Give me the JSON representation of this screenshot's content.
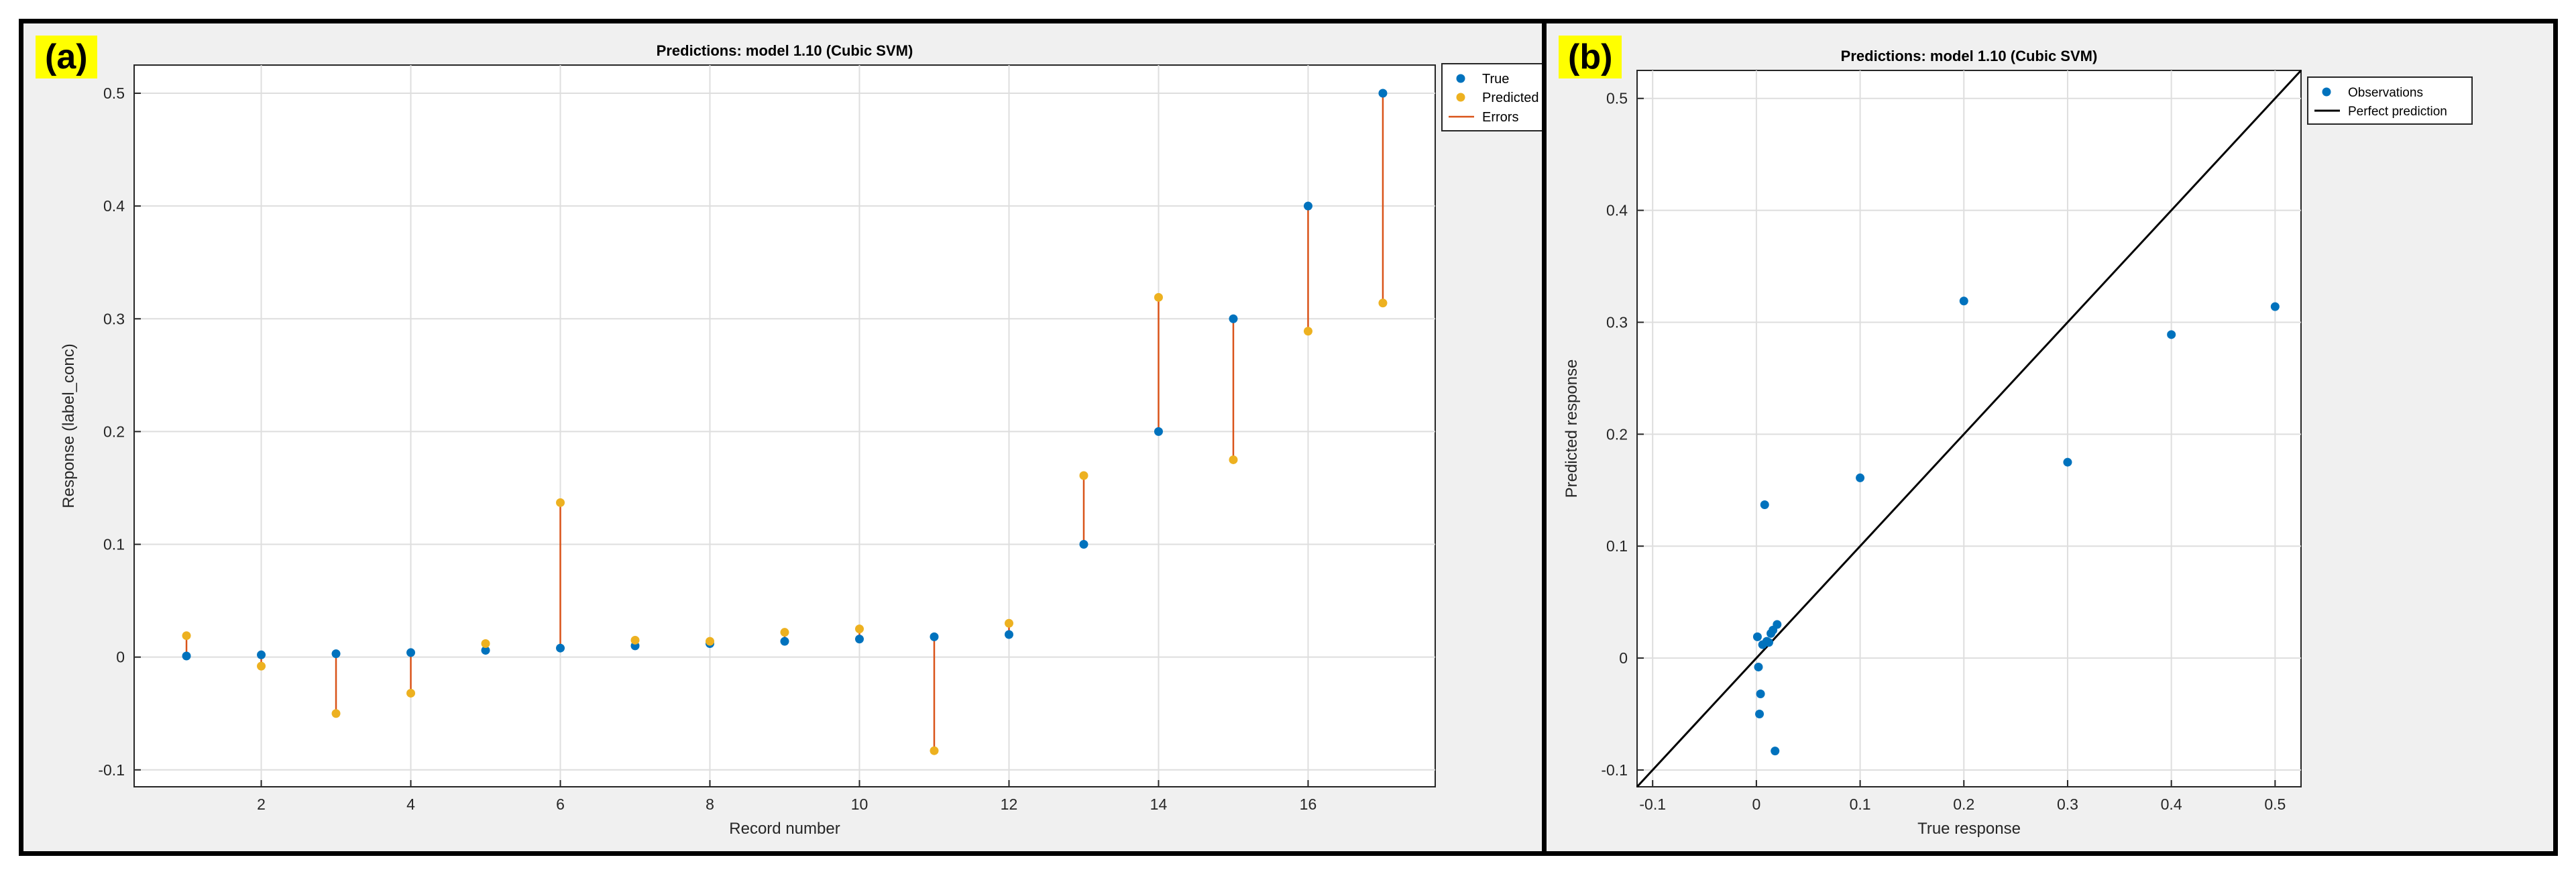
{
  "panels": [
    {
      "tag": "(a)",
      "title": "Predictions: model 1.10 (Cubic SVM)",
      "xlabel": "Record number",
      "ylabel": "Response (label_conc)",
      "legend": [
        "True",
        "Predicted",
        "Errors"
      ]
    },
    {
      "tag": "(b)",
      "title": "Predictions: model 1.10 (Cubic SVM)",
      "xlabel": "True response",
      "ylabel": "Predicted response",
      "legend": [
        "Observations",
        "Perfect prediction"
      ]
    }
  ],
  "colors": {
    "true": "#0072bd",
    "predicted": "#edb120",
    "error": "#d95319",
    "perfect": "#000000"
  },
  "chart_data": [
    {
      "type": "scatter",
      "title": "Predictions: model 1.10 (Cubic SVM)",
      "xlabel": "Record number",
      "ylabel": "Response (label_conc)",
      "xlim": [
        0.3,
        17.7
      ],
      "ylim": [
        -0.115,
        0.525
      ],
      "xticks": [
        2,
        4,
        6,
        8,
        10,
        12,
        14,
        16
      ],
      "yticks": [
        -0.1,
        0,
        0.1,
        0.2,
        0.3,
        0.4,
        0.5
      ],
      "grid": true,
      "legend_position": "top-right",
      "x": [
        1,
        2,
        3,
        4,
        5,
        6,
        7,
        8,
        9,
        10,
        11,
        12,
        13,
        14,
        15,
        16,
        17
      ],
      "series": [
        {
          "name": "True",
          "values": [
            0.001,
            0.002,
            0.003,
            0.004,
            0.006,
            0.008,
            0.01,
            0.012,
            0.014,
            0.016,
            0.018,
            0.02,
            0.1,
            0.2,
            0.3,
            0.4,
            0.5
          ]
        },
        {
          "name": "Predicted",
          "values": [
            0.019,
            -0.008,
            -0.05,
            -0.032,
            0.012,
            0.137,
            0.015,
            0.014,
            0.022,
            0.025,
            -0.083,
            0.03,
            0.161,
            0.319,
            0.175,
            0.289,
            0.314
          ]
        }
      ]
    },
    {
      "type": "scatter",
      "title": "Predictions: model 1.10 (Cubic SVM)",
      "xlabel": "True response",
      "ylabel": "Predicted response",
      "xlim": [
        -0.115,
        0.525
      ],
      "ylim": [
        -0.115,
        0.525
      ],
      "xticks": [
        -0.1,
        0,
        0.1,
        0.2,
        0.3,
        0.4,
        0.5
      ],
      "yticks": [
        -0.1,
        0,
        0.1,
        0.2,
        0.3,
        0.4,
        0.5
      ],
      "grid": true,
      "legend_position": "top-right",
      "series": [
        {
          "name": "Observations",
          "x": [
            0.001,
            0.002,
            0.003,
            0.004,
            0.006,
            0.008,
            0.01,
            0.012,
            0.014,
            0.016,
            0.018,
            0.02,
            0.1,
            0.2,
            0.3,
            0.4,
            0.5
          ],
          "y": [
            0.019,
            -0.008,
            -0.05,
            -0.032,
            0.012,
            0.137,
            0.015,
            0.014,
            0.022,
            0.025,
            -0.083,
            0.03,
            0.161,
            0.319,
            0.175,
            0.289,
            0.314
          ]
        }
      ],
      "reference_line": {
        "name": "Perfect prediction",
        "x": [
          -0.115,
          0.525
        ],
        "y": [
          -0.115,
          0.525
        ]
      }
    }
  ]
}
